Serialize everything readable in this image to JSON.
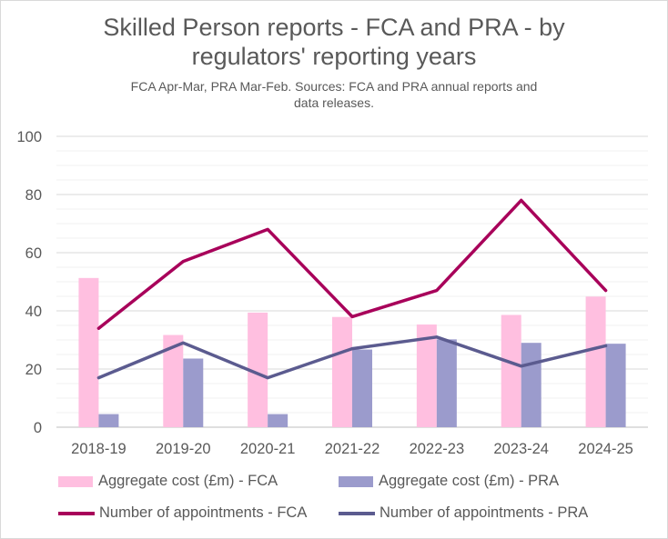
{
  "chart_data": {
    "type": "bar",
    "title_lines": [
      "Skilled Person reports - FCA and PRA - by",
      "regulators' reporting years"
    ],
    "subtitle_lines": [
      "FCA Apr-Mar, PRA Mar-Feb.  Sources: FCA and PRA annual reports and",
      "data releases."
    ],
    "categories": [
      "2018-19",
      "2019-20",
      "2020-21",
      "2021-22",
      "2022-23",
      "2023-24",
      "2024-25"
    ],
    "ylim": [
      0,
      100
    ],
    "yticks": [
      0,
      20,
      40,
      60,
      80,
      100
    ],
    "grid": true,
    "legend_position": "bottom",
    "series": [
      {
        "name": "Aggregate cost (£m) - FCA",
        "kind": "bar",
        "color": "#ffbfe0",
        "values": [
          51.3,
          31.7,
          39.4,
          37.9,
          35.3,
          38.6,
          44.9
        ]
      },
      {
        "name": "Aggregate cost (£m) - PRA",
        "kind": "bar",
        "color": "#9b9bcc",
        "values": [
          4.5,
          23.6,
          4.5,
          26.7,
          30.2,
          29.0,
          28.7
        ]
      },
      {
        "name": "Number of appointments - FCA",
        "kind": "line",
        "color": "#a8005a",
        "values": [
          34,
          57,
          68,
          38,
          47,
          78,
          47
        ]
      },
      {
        "name": "Number of appointments - PRA",
        "kind": "line",
        "color": "#5b5b8f",
        "values": [
          17,
          29,
          17,
          27,
          31,
          21,
          28
        ]
      }
    ]
  }
}
